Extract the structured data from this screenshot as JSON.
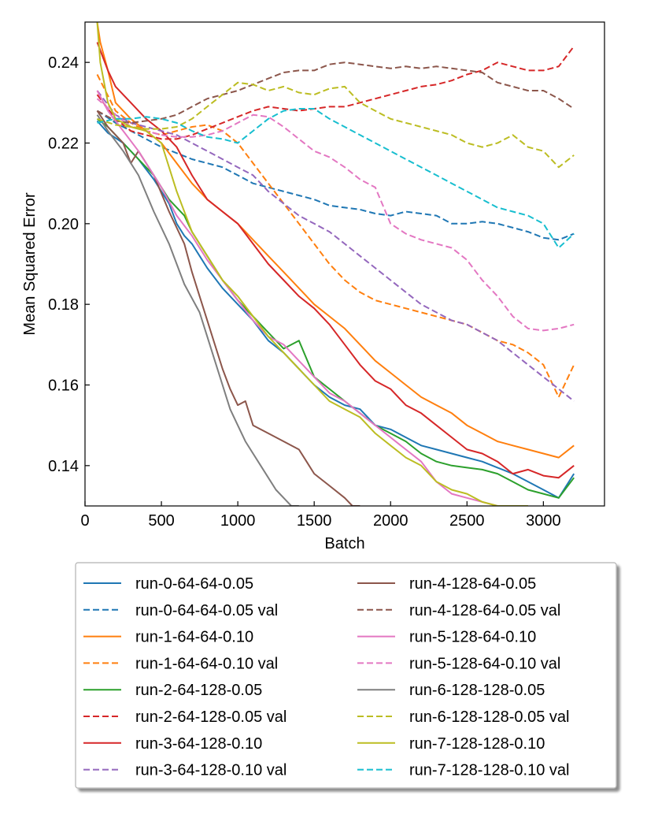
{
  "chart_data": {
    "type": "line",
    "title": "",
    "xlabel": "Batch",
    "ylabel": "Mean Squared Error",
    "xlim": [
      0,
      3400
    ],
    "ylim": [
      0.13,
      0.25
    ],
    "xticks": [
      "0",
      "500",
      "1000",
      "1500",
      "2000",
      "2500",
      "3000"
    ],
    "xtick_values": [
      0,
      500,
      1000,
      1500,
      2000,
      2500,
      3000
    ],
    "yticks": [
      "0.14",
      "0.16",
      "0.18",
      "0.20",
      "0.22",
      "0.24"
    ],
    "ytick_values": [
      0.14,
      0.16,
      0.18,
      0.2,
      0.22,
      0.24
    ],
    "grid": false,
    "legend_position": "below",
    "series": [
      {
        "name": "run-0-64-64-0.05",
        "color": "#1f77b4",
        "dash": "solid",
        "x": [
          80,
          150,
          250,
          350,
          450,
          500,
          550,
          600,
          650,
          700,
          800,
          900,
          1000,
          1100,
          1200,
          1300,
          1400,
          1500,
          1600,
          1700,
          1800,
          1900,
          2000,
          2100,
          2200,
          2300,
          2400,
          2500,
          2600,
          2700,
          2800,
          2900,
          3000,
          3100,
          3200
        ],
        "y": [
          0.2255,
          0.2225,
          0.22,
          0.216,
          0.211,
          0.208,
          0.205,
          0.2,
          0.197,
          0.195,
          0.189,
          0.184,
          0.18,
          0.176,
          0.171,
          0.168,
          0.164,
          0.16,
          0.157,
          0.155,
          0.154,
          0.15,
          0.149,
          0.147,
          0.145,
          0.144,
          0.143,
          0.142,
          0.141,
          0.1395,
          0.138,
          0.136,
          0.134,
          0.132,
          0.138
        ]
      },
      {
        "name": "run-0-64-64-0.05 val",
        "color": "#1f77b4",
        "dash": "dashed",
        "x": [
          80,
          200,
          300,
          400,
          500,
          600,
          700,
          800,
          900,
          1000,
          1100,
          1200,
          1300,
          1400,
          1500,
          1600,
          1700,
          1800,
          1900,
          2000,
          2100,
          2200,
          2300,
          2400,
          2500,
          2600,
          2700,
          2800,
          2900,
          3000,
          3100,
          3200
        ],
        "y": [
          0.228,
          0.225,
          0.223,
          0.221,
          0.219,
          0.2175,
          0.216,
          0.215,
          0.214,
          0.212,
          0.21,
          0.209,
          0.208,
          0.207,
          0.206,
          0.2045,
          0.204,
          0.2035,
          0.2025,
          0.202,
          0.203,
          0.2025,
          0.202,
          0.2,
          0.2,
          0.2005,
          0.2,
          0.199,
          0.198,
          0.1965,
          0.196,
          0.1975
        ]
      },
      {
        "name": "run-1-64-64-0.10",
        "color": "#ff7f0e",
        "dash": "solid",
        "x": [
          80,
          100,
          150,
          200,
          300,
          400,
          500,
          600,
          700,
          800,
          900,
          1000,
          1100,
          1200,
          1300,
          1400,
          1500,
          1600,
          1700,
          1800,
          1900,
          2000,
          2100,
          2200,
          2300,
          2400,
          2500,
          2600,
          2700,
          2800,
          2900,
          3000,
          3100,
          3200
        ],
        "y": [
          0.25,
          0.245,
          0.238,
          0.23,
          0.226,
          0.223,
          0.22,
          0.215,
          0.21,
          0.206,
          0.203,
          0.2,
          0.196,
          0.192,
          0.188,
          0.184,
          0.18,
          0.177,
          0.174,
          0.17,
          0.166,
          0.163,
          0.16,
          0.157,
          0.155,
          0.153,
          0.15,
          0.148,
          0.146,
          0.145,
          0.144,
          0.143,
          0.142,
          0.145
        ]
      },
      {
        "name": "run-1-64-64-0.10 val",
        "color": "#ff7f0e",
        "dash": "dashed",
        "x": [
          80,
          200,
          300,
          400,
          500,
          600,
          700,
          800,
          900,
          1000,
          1100,
          1200,
          1300,
          1400,
          1500,
          1600,
          1700,
          1800,
          1900,
          2000,
          2100,
          2200,
          2300,
          2400,
          2500,
          2600,
          2700,
          2800,
          2900,
          3000,
          3100,
          3200
        ],
        "y": [
          0.237,
          0.228,
          0.225,
          0.223,
          0.222,
          0.223,
          0.224,
          0.2245,
          0.223,
          0.22,
          0.215,
          0.21,
          0.205,
          0.2,
          0.195,
          0.19,
          0.186,
          0.183,
          0.181,
          0.18,
          0.179,
          0.178,
          0.177,
          0.176,
          0.175,
          0.173,
          0.171,
          0.17,
          0.168,
          0.165,
          0.157,
          0.165
        ]
      },
      {
        "name": "run-2-64-128-0.05",
        "color": "#2ca02c",
        "dash": "solid",
        "x": [
          80,
          150,
          250,
          350,
          450,
          550,
          650,
          700,
          800,
          900,
          1000,
          1100,
          1200,
          1300,
          1400,
          1500,
          1600,
          1700,
          1800,
          1900,
          2000,
          2100,
          2200,
          2300,
          2400,
          2500,
          2600,
          2700,
          2800,
          2900,
          3000,
          3100,
          3200
        ],
        "y": [
          0.226,
          0.224,
          0.22,
          0.216,
          0.212,
          0.206,
          0.202,
          0.198,
          0.192,
          0.186,
          0.181,
          0.177,
          0.173,
          0.169,
          0.171,
          0.162,
          0.159,
          0.156,
          0.153,
          0.15,
          0.148,
          0.146,
          0.143,
          0.141,
          0.14,
          0.1395,
          0.139,
          0.138,
          0.136,
          0.134,
          0.133,
          0.132,
          0.137
        ]
      },
      {
        "name": "run-2-64-128-0.05 val",
        "color": "#d62728",
        "dash": "dashed",
        "x": [
          80,
          200,
          300,
          400,
          500,
          600,
          700,
          800,
          900,
          1000,
          1100,
          1200,
          1300,
          1400,
          1500,
          1600,
          1700,
          1800,
          1900,
          2000,
          2100,
          2200,
          2300,
          2400,
          2500,
          2600,
          2700,
          2800,
          2900,
          3000,
          3100,
          3200
        ],
        "y": [
          0.232,
          0.226,
          0.223,
          0.222,
          0.221,
          0.221,
          0.222,
          0.2235,
          0.225,
          0.2265,
          0.228,
          0.229,
          0.2285,
          0.228,
          0.2285,
          0.229,
          0.229,
          0.23,
          0.231,
          0.232,
          0.233,
          0.234,
          0.2345,
          0.2355,
          0.237,
          0.238,
          0.24,
          0.239,
          0.238,
          0.238,
          0.239,
          0.244
        ]
      },
      {
        "name": "run-3-64-128-0.10",
        "color": "#d62728",
        "dash": "solid",
        "x": [
          80,
          100,
          150,
          200,
          300,
          400,
          500,
          600,
          700,
          800,
          900,
          1000,
          1100,
          1200,
          1300,
          1400,
          1500,
          1600,
          1700,
          1800,
          1900,
          2000,
          2100,
          2200,
          2300,
          2400,
          2500,
          2600,
          2700,
          2800,
          2900,
          3000,
          3100,
          3200
        ],
        "y": [
          0.245,
          0.243,
          0.238,
          0.234,
          0.23,
          0.226,
          0.223,
          0.219,
          0.212,
          0.206,
          0.203,
          0.2,
          0.195,
          0.19,
          0.186,
          0.182,
          0.179,
          0.175,
          0.17,
          0.165,
          0.161,
          0.159,
          0.155,
          0.153,
          0.15,
          0.147,
          0.144,
          0.143,
          0.141,
          0.138,
          0.139,
          0.1375,
          0.137,
          0.14
        ]
      },
      {
        "name": "run-3-64-128-0.10 val",
        "color": "#9467bd",
        "dash": "dashed",
        "x": [
          80,
          200,
          300,
          400,
          500,
          600,
          700,
          800,
          900,
          1000,
          1100,
          1200,
          1300,
          1400,
          1500,
          1600,
          1700,
          1800,
          1900,
          2000,
          2100,
          2200,
          2300,
          2400,
          2500,
          2600,
          2700,
          2800,
          2900,
          3000,
          3100,
          3200
        ],
        "y": [
          0.233,
          0.227,
          0.225,
          0.224,
          0.223,
          0.222,
          0.22,
          0.218,
          0.216,
          0.214,
          0.212,
          0.208,
          0.205,
          0.202,
          0.2,
          0.198,
          0.195,
          0.192,
          0.189,
          0.186,
          0.183,
          0.18,
          0.178,
          0.176,
          0.175,
          0.173,
          0.171,
          0.168,
          0.165,
          0.162,
          0.159,
          0.156
        ]
      },
      {
        "name": "run-4-128-64-0.05",
        "color": "#8c564b",
        "dash": "solid",
        "x": [
          80,
          150,
          250,
          300,
          350,
          450,
          550,
          650,
          700,
          750,
          800,
          850,
          900,
          950,
          1000,
          1050,
          1100,
          1200,
          1300,
          1400,
          1450,
          1500,
          1600,
          1700,
          1750,
          1800
        ],
        "y": [
          0.228,
          0.224,
          0.22,
          0.215,
          0.218,
          0.212,
          0.203,
          0.195,
          0.188,
          0.182,
          0.176,
          0.17,
          0.164,
          0.159,
          0.155,
          0.156,
          0.15,
          0.148,
          0.146,
          0.144,
          0.141,
          0.138,
          0.135,
          0.132,
          0.13,
          0.13
        ]
      },
      {
        "name": "run-4-128-64-0.05 val",
        "color": "#8c564b",
        "dash": "dashed",
        "x": [
          80,
          200,
          300,
          400,
          500,
          600,
          700,
          800,
          900,
          1000,
          1100,
          1200,
          1300,
          1400,
          1500,
          1600,
          1700,
          1800,
          1900,
          2000,
          2100,
          2200,
          2300,
          2400,
          2500,
          2600,
          2700,
          2800,
          2900,
          3000,
          3100,
          3200
        ],
        "y": [
          0.228,
          0.2255,
          0.225,
          0.2255,
          0.226,
          0.227,
          0.229,
          0.231,
          0.232,
          0.233,
          0.2345,
          0.236,
          0.2375,
          0.238,
          0.238,
          0.2395,
          0.24,
          0.2395,
          0.239,
          0.2385,
          0.239,
          0.2385,
          0.239,
          0.2385,
          0.238,
          0.2375,
          0.235,
          0.234,
          0.233,
          0.233,
          0.231,
          0.2285
        ]
      },
      {
        "name": "run-5-128-64-0.10",
        "color": "#e377c2",
        "dash": "solid",
        "x": [
          80,
          150,
          250,
          350,
          450,
          500,
          600,
          700,
          800,
          900,
          1000,
          1100,
          1200,
          1300,
          1400,
          1500,
          1600,
          1700,
          1800,
          1900,
          2000,
          2100,
          2200,
          2300,
          2400,
          2500,
          2600,
          2700
        ],
        "y": [
          0.233,
          0.228,
          0.223,
          0.218,
          0.212,
          0.209,
          0.202,
          0.197,
          0.191,
          0.186,
          0.181,
          0.176,
          0.172,
          0.17,
          0.166,
          0.162,
          0.158,
          0.156,
          0.153,
          0.15,
          0.147,
          0.144,
          0.141,
          0.136,
          0.133,
          0.132,
          0.131,
          0.13
        ]
      },
      {
        "name": "run-5-128-64-0.10 val",
        "color": "#e377c2",
        "dash": "dashed",
        "x": [
          80,
          200,
          300,
          400,
          500,
          600,
          700,
          800,
          900,
          1000,
          1100,
          1200,
          1300,
          1400,
          1500,
          1600,
          1700,
          1800,
          1900,
          2000,
          2100,
          2200,
          2300,
          2400,
          2500,
          2600,
          2700,
          2800,
          2900,
          3000,
          3100,
          3200
        ],
        "y": [
          0.231,
          0.227,
          0.224,
          0.223,
          0.222,
          0.2215,
          0.2215,
          0.222,
          0.223,
          0.225,
          0.227,
          0.2265,
          0.224,
          0.221,
          0.218,
          0.2165,
          0.214,
          0.211,
          0.209,
          0.2,
          0.1975,
          0.196,
          0.195,
          0.194,
          0.191,
          0.186,
          0.182,
          0.177,
          0.174,
          0.1735,
          0.174,
          0.175
        ]
      },
      {
        "name": "run-6-128-128-0.05",
        "color": "#7f7f7f",
        "dash": "solid",
        "x": [
          80,
          150,
          250,
          350,
          450,
          550,
          650,
          750,
          800,
          850,
          900,
          950,
          1000,
          1050,
          1100,
          1150,
          1200,
          1250,
          1300,
          1350,
          1400
        ],
        "y": [
          0.227,
          0.223,
          0.218,
          0.212,
          0.203,
          0.195,
          0.185,
          0.178,
          0.172,
          0.166,
          0.16,
          0.154,
          0.15,
          0.146,
          0.143,
          0.14,
          0.137,
          0.134,
          0.132,
          0.13,
          0.13
        ]
      },
      {
        "name": "run-6-128-128-0.05 val",
        "color": "#bcbd22",
        "dash": "dashed",
        "x": [
          80,
          200,
          300,
          400,
          500,
          600,
          700,
          800,
          900,
          1000,
          1100,
          1200,
          1300,
          1400,
          1500,
          1600,
          1700,
          1800,
          1900,
          2000,
          2100,
          2200,
          2300,
          2400,
          2500,
          2600,
          2700,
          2800,
          2900,
          3000,
          3100,
          3200
        ],
        "y": [
          0.226,
          0.2245,
          0.224,
          0.2235,
          0.2235,
          0.224,
          0.226,
          0.229,
          0.232,
          0.235,
          0.2345,
          0.233,
          0.234,
          0.2325,
          0.232,
          0.2335,
          0.234,
          0.23,
          0.228,
          0.226,
          0.225,
          0.224,
          0.223,
          0.222,
          0.22,
          0.219,
          0.22,
          0.222,
          0.219,
          0.218,
          0.214,
          0.217
        ]
      },
      {
        "name": "run-7-128-128-0.10",
        "color": "#bcbd22",
        "dash": "solid",
        "x": [
          80,
          100,
          150,
          200,
          300,
          400,
          500,
          600,
          700,
          800,
          900,
          1000,
          1100,
          1200,
          1300,
          1400,
          1500,
          1600,
          1700,
          1800,
          1900,
          2000,
          2100,
          2200,
          2300,
          2400,
          2500,
          2600,
          2700,
          2800,
          2900
        ],
        "y": [
          0.25,
          0.24,
          0.23,
          0.226,
          0.224,
          0.223,
          0.22,
          0.208,
          0.198,
          0.192,
          0.186,
          0.182,
          0.177,
          0.172,
          0.168,
          0.164,
          0.16,
          0.156,
          0.154,
          0.152,
          0.148,
          0.145,
          0.142,
          0.14,
          0.136,
          0.134,
          0.133,
          0.131,
          0.13,
          0.13,
          0.13
        ]
      },
      {
        "name": "run-7-128-128-0.10 val",
        "color": "#17becf",
        "dash": "dashed",
        "x": [
          80,
          200,
          300,
          400,
          500,
          600,
          700,
          800,
          900,
          1000,
          1100,
          1200,
          1300,
          1400,
          1500,
          1600,
          1700,
          1800,
          1900,
          2000,
          2100,
          2200,
          2300,
          2400,
          2500,
          2600,
          2700,
          2800,
          2900,
          3000,
          3100,
          3200
        ],
        "y": [
          0.225,
          0.226,
          0.226,
          0.2265,
          0.226,
          0.225,
          0.223,
          0.2215,
          0.221,
          0.22,
          0.223,
          0.226,
          0.228,
          0.2285,
          0.2285,
          0.226,
          0.224,
          0.222,
          0.22,
          0.218,
          0.216,
          0.214,
          0.212,
          0.21,
          0.208,
          0.206,
          0.204,
          0.203,
          0.202,
          0.2,
          0.194,
          0.1975
        ]
      }
    ]
  }
}
